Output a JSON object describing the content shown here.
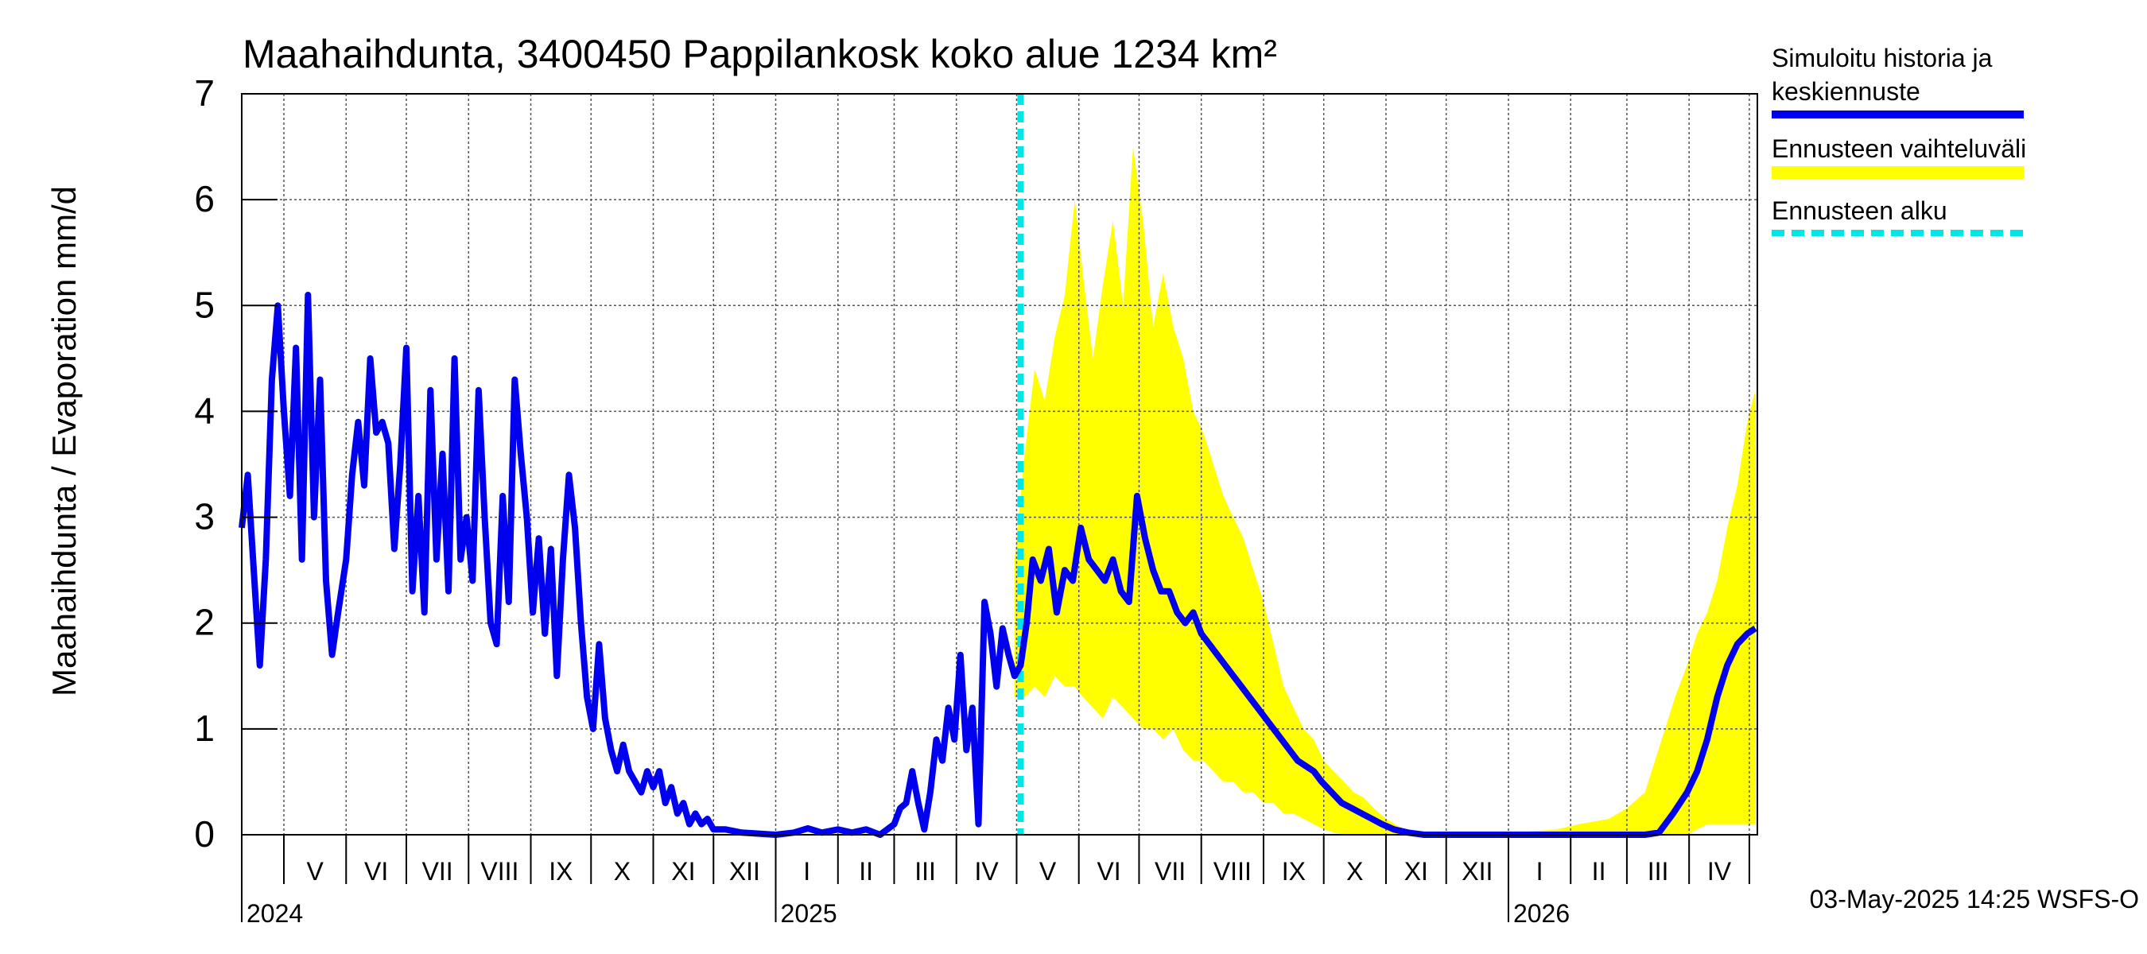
{
  "chart_data": {
    "type": "line",
    "title": "Maahaihdunta, 3400450 Pappilankosk koko alue 1234 km²",
    "ylabel": "Maahaihdunta / Evaporation   mm/d",
    "ylim": [
      0,
      7
    ],
    "yticks": [
      "0",
      "1",
      "2",
      "3",
      "4",
      "5",
      "6",
      "7"
    ],
    "x_range": [
      "2024-04-10",
      "2026-05-05"
    ],
    "months": [
      {
        "label": "V",
        "date": "2024-05-01"
      },
      {
        "label": "VI",
        "date": "2024-06-01"
      },
      {
        "label": "VII",
        "date": "2024-07-01"
      },
      {
        "label": "VIII",
        "date": "2024-08-01"
      },
      {
        "label": "IX",
        "date": "2024-09-01"
      },
      {
        "label": "X",
        "date": "2024-10-01"
      },
      {
        "label": "XI",
        "date": "2024-11-01"
      },
      {
        "label": "XII",
        "date": "2024-12-01"
      },
      {
        "label": "I",
        "date": "2025-01-01"
      },
      {
        "label": "II",
        "date": "2025-02-01"
      },
      {
        "label": "III",
        "date": "2025-03-01"
      },
      {
        "label": "IV",
        "date": "2025-04-01"
      },
      {
        "label": "V",
        "date": "2025-05-01"
      },
      {
        "label": "VI",
        "date": "2025-06-01"
      },
      {
        "label": "VII",
        "date": "2025-07-01"
      },
      {
        "label": "VIII",
        "date": "2025-08-01"
      },
      {
        "label": "IX",
        "date": "2025-09-01"
      },
      {
        "label": "X",
        "date": "2025-10-01"
      },
      {
        "label": "XI",
        "date": "2025-11-01"
      },
      {
        "label": "XII",
        "date": "2025-12-01"
      },
      {
        "label": "I",
        "date": "2026-01-01"
      },
      {
        "label": "II",
        "date": "2026-02-01"
      },
      {
        "label": "III",
        "date": "2026-03-01"
      },
      {
        "label": "IV",
        "date": "2026-04-01"
      },
      {
        "label": "",
        "date": "2026-05-01"
      }
    ],
    "years": [
      {
        "label": "2024",
        "date": "2024-04-10"
      },
      {
        "label": "2025",
        "date": "2025-01-01"
      },
      {
        "label": "2026",
        "date": "2026-01-01"
      }
    ],
    "forecast_start": "2025-05-03",
    "series": [
      {
        "name": "Simuloitu historia ja keskiennuste",
        "color": "#0000ee",
        "points": [
          [
            "2024-04-10",
            2.9
          ],
          [
            "2024-04-13",
            3.4
          ],
          [
            "2024-04-16",
            2.5
          ],
          [
            "2024-04-19",
            1.6
          ],
          [
            "2024-04-22",
            2.6
          ],
          [
            "2024-04-25",
            4.3
          ],
          [
            "2024-04-28",
            5.0
          ],
          [
            "2024-05-01",
            4.0
          ],
          [
            "2024-05-04",
            3.2
          ],
          [
            "2024-05-07",
            4.6
          ],
          [
            "2024-05-10",
            2.6
          ],
          [
            "2024-05-13",
            5.1
          ],
          [
            "2024-05-16",
            3.0
          ],
          [
            "2024-05-19",
            4.3
          ],
          [
            "2024-05-22",
            2.4
          ],
          [
            "2024-05-25",
            1.7
          ],
          [
            "2024-05-28",
            2.1
          ],
          [
            "2024-06-01",
            2.6
          ],
          [
            "2024-06-04",
            3.4
          ],
          [
            "2024-06-07",
            3.9
          ],
          [
            "2024-06-10",
            3.3
          ],
          [
            "2024-06-13",
            4.5
          ],
          [
            "2024-06-16",
            3.8
          ],
          [
            "2024-06-19",
            3.9
          ],
          [
            "2024-06-22",
            3.7
          ],
          [
            "2024-06-25",
            2.7
          ],
          [
            "2024-06-28",
            3.5
          ],
          [
            "2024-07-01",
            4.6
          ],
          [
            "2024-07-04",
            2.3
          ],
          [
            "2024-07-07",
            3.2
          ],
          [
            "2024-07-10",
            2.1
          ],
          [
            "2024-07-13",
            4.2
          ],
          [
            "2024-07-16",
            2.6
          ],
          [
            "2024-07-19",
            3.6
          ],
          [
            "2024-07-22",
            2.3
          ],
          [
            "2024-07-25",
            4.5
          ],
          [
            "2024-07-28",
            2.6
          ],
          [
            "2024-07-31",
            3.0
          ],
          [
            "2024-08-03",
            2.4
          ],
          [
            "2024-08-06",
            4.2
          ],
          [
            "2024-08-09",
            3.0
          ],
          [
            "2024-08-12",
            2.0
          ],
          [
            "2024-08-15",
            1.8
          ],
          [
            "2024-08-18",
            3.2
          ],
          [
            "2024-08-21",
            2.2
          ],
          [
            "2024-08-24",
            4.3
          ],
          [
            "2024-08-27",
            3.6
          ],
          [
            "2024-08-30",
            3.0
          ],
          [
            "2024-09-02",
            2.1
          ],
          [
            "2024-09-05",
            2.8
          ],
          [
            "2024-09-08",
            1.9
          ],
          [
            "2024-09-11",
            2.7
          ],
          [
            "2024-09-14",
            1.5
          ],
          [
            "2024-09-17",
            2.6
          ],
          [
            "2024-09-20",
            3.4
          ],
          [
            "2024-09-23",
            2.9
          ],
          [
            "2024-09-26",
            2.0
          ],
          [
            "2024-09-29",
            1.3
          ],
          [
            "2024-10-02",
            1.0
          ],
          [
            "2024-10-05",
            1.8
          ],
          [
            "2024-10-08",
            1.1
          ],
          [
            "2024-10-11",
            0.8
          ],
          [
            "2024-10-14",
            0.6
          ],
          [
            "2024-10-17",
            0.85
          ],
          [
            "2024-10-20",
            0.6
          ],
          [
            "2024-10-23",
            0.5
          ],
          [
            "2024-10-26",
            0.4
          ],
          [
            "2024-10-29",
            0.6
          ],
          [
            "2024-11-01",
            0.45
          ],
          [
            "2024-11-04",
            0.6
          ],
          [
            "2024-11-07",
            0.3
          ],
          [
            "2024-11-10",
            0.45
          ],
          [
            "2024-11-13",
            0.2
          ],
          [
            "2024-11-16",
            0.3
          ],
          [
            "2024-11-19",
            0.1
          ],
          [
            "2024-11-22",
            0.2
          ],
          [
            "2024-11-25",
            0.1
          ],
          [
            "2024-11-28",
            0.15
          ],
          [
            "2024-12-01",
            0.05
          ],
          [
            "2024-12-07",
            0.05
          ],
          [
            "2024-12-15",
            0.02
          ],
          [
            "2025-01-01",
            0.0
          ],
          [
            "2025-01-10",
            0.02
          ],
          [
            "2025-01-17",
            0.06
          ],
          [
            "2025-01-24",
            0.02
          ],
          [
            "2025-02-01",
            0.05
          ],
          [
            "2025-02-08",
            0.02
          ],
          [
            "2025-02-15",
            0.05
          ],
          [
            "2025-02-22",
            0.0
          ],
          [
            "2025-03-01",
            0.1
          ],
          [
            "2025-03-04",
            0.25
          ],
          [
            "2025-03-07",
            0.3
          ],
          [
            "2025-03-10",
            0.6
          ],
          [
            "2025-03-13",
            0.3
          ],
          [
            "2025-03-16",
            0.05
          ],
          [
            "2025-03-19",
            0.4
          ],
          [
            "2025-03-22",
            0.9
          ],
          [
            "2025-03-25",
            0.7
          ],
          [
            "2025-03-28",
            1.2
          ],
          [
            "2025-03-31",
            0.9
          ],
          [
            "2025-04-03",
            1.7
          ],
          [
            "2025-04-06",
            0.8
          ],
          [
            "2025-04-09",
            1.2
          ],
          [
            "2025-04-12",
            0.1
          ],
          [
            "2025-04-15",
            2.2
          ],
          [
            "2025-04-18",
            1.9
          ],
          [
            "2025-04-21",
            1.4
          ],
          [
            "2025-04-24",
            1.95
          ],
          [
            "2025-04-27",
            1.7
          ],
          [
            "2025-04-30",
            1.5
          ],
          [
            "2025-05-03",
            1.6
          ],
          [
            "2025-05-06",
            2.0
          ],
          [
            "2025-05-09",
            2.6
          ],
          [
            "2025-05-13",
            2.4
          ],
          [
            "2025-05-17",
            2.7
          ],
          [
            "2025-05-21",
            2.1
          ],
          [
            "2025-05-25",
            2.5
          ],
          [
            "2025-05-29",
            2.4
          ],
          [
            "2025-06-02",
            2.9
          ],
          [
            "2025-06-06",
            2.6
          ],
          [
            "2025-06-10",
            2.5
          ],
          [
            "2025-06-14",
            2.4
          ],
          [
            "2025-06-18",
            2.6
          ],
          [
            "2025-06-22",
            2.3
          ],
          [
            "2025-06-26",
            2.2
          ],
          [
            "2025-06-30",
            3.2
          ],
          [
            "2025-07-04",
            2.8
          ],
          [
            "2025-07-08",
            2.5
          ],
          [
            "2025-07-12",
            2.3
          ],
          [
            "2025-07-16",
            2.3
          ],
          [
            "2025-07-20",
            2.1
          ],
          [
            "2025-07-24",
            2.0
          ],
          [
            "2025-07-28",
            2.1
          ],
          [
            "2025-08-01",
            1.9
          ],
          [
            "2025-08-05",
            1.8
          ],
          [
            "2025-08-09",
            1.7
          ],
          [
            "2025-08-13",
            1.6
          ],
          [
            "2025-08-17",
            1.5
          ],
          [
            "2025-08-21",
            1.4
          ],
          [
            "2025-08-25",
            1.3
          ],
          [
            "2025-08-29",
            1.2
          ],
          [
            "2025-09-02",
            1.1
          ],
          [
            "2025-09-06",
            1.0
          ],
          [
            "2025-09-10",
            0.9
          ],
          [
            "2025-09-14",
            0.8
          ],
          [
            "2025-09-18",
            0.7
          ],
          [
            "2025-09-22",
            0.65
          ],
          [
            "2025-09-26",
            0.6
          ],
          [
            "2025-09-30",
            0.5
          ],
          [
            "2025-10-05",
            0.4
          ],
          [
            "2025-10-10",
            0.3
          ],
          [
            "2025-10-15",
            0.25
          ],
          [
            "2025-10-20",
            0.2
          ],
          [
            "2025-10-25",
            0.15
          ],
          [
            "2025-10-30",
            0.1
          ],
          [
            "2025-11-05",
            0.05
          ],
          [
            "2025-11-12",
            0.02
          ],
          [
            "2025-11-20",
            0.0
          ],
          [
            "2026-01-01",
            0.0
          ],
          [
            "2026-03-10",
            0.0
          ],
          [
            "2026-03-17",
            0.02
          ],
          [
            "2026-03-24",
            0.2
          ],
          [
            "2026-03-31",
            0.4
          ],
          [
            "2026-04-05",
            0.6
          ],
          [
            "2026-04-10",
            0.9
          ],
          [
            "2026-04-15",
            1.3
          ],
          [
            "2026-04-20",
            1.6
          ],
          [
            "2026-04-25",
            1.8
          ],
          [
            "2026-04-30",
            1.9
          ],
          [
            "2026-05-04",
            1.95
          ]
        ]
      },
      {
        "name": "Ennusteen vaihteluväli",
        "color": "#ffff00",
        "band": [
          [
            "2025-04-30",
            1.3,
            2.6
          ],
          [
            "2025-05-05",
            1.3,
            3.6
          ],
          [
            "2025-05-10",
            1.4,
            4.4
          ],
          [
            "2025-05-15",
            1.3,
            4.1
          ],
          [
            "2025-05-20",
            1.5,
            4.7
          ],
          [
            "2025-05-25",
            1.4,
            5.1
          ],
          [
            "2025-05-30",
            1.4,
            6.0
          ],
          [
            "2025-06-03",
            1.3,
            5.3
          ],
          [
            "2025-06-08",
            1.2,
            4.5
          ],
          [
            "2025-06-13",
            1.1,
            5.2
          ],
          [
            "2025-06-18",
            1.3,
            5.8
          ],
          [
            "2025-06-23",
            1.2,
            5.0
          ],
          [
            "2025-06-28",
            1.1,
            6.5
          ],
          [
            "2025-07-03",
            1.0,
            5.8
          ],
          [
            "2025-07-08",
            1.0,
            4.8
          ],
          [
            "2025-07-13",
            0.9,
            5.3
          ],
          [
            "2025-07-18",
            1.0,
            4.8
          ],
          [
            "2025-07-23",
            0.8,
            4.5
          ],
          [
            "2025-07-28",
            0.7,
            4.0
          ],
          [
            "2025-08-02",
            0.7,
            3.8
          ],
          [
            "2025-08-07",
            0.6,
            3.5
          ],
          [
            "2025-08-12",
            0.5,
            3.2
          ],
          [
            "2025-08-17",
            0.5,
            3.0
          ],
          [
            "2025-08-22",
            0.4,
            2.8
          ],
          [
            "2025-08-27",
            0.4,
            2.5
          ],
          [
            "2025-09-01",
            0.3,
            2.2
          ],
          [
            "2025-09-06",
            0.3,
            1.8
          ],
          [
            "2025-09-11",
            0.2,
            1.4
          ],
          [
            "2025-09-16",
            0.2,
            1.2
          ],
          [
            "2025-09-21",
            0.15,
            1.0
          ],
          [
            "2025-09-26",
            0.1,
            0.9
          ],
          [
            "2025-10-01",
            0.05,
            0.7
          ],
          [
            "2025-10-06",
            0.02,
            0.6
          ],
          [
            "2025-10-11",
            0.0,
            0.5
          ],
          [
            "2025-10-16",
            0.0,
            0.4
          ],
          [
            "2025-10-21",
            0.0,
            0.35
          ],
          [
            "2025-10-26",
            0.0,
            0.25
          ],
          [
            "2025-11-01",
            0.0,
            0.15
          ],
          [
            "2025-11-10",
            0.0,
            0.05
          ],
          [
            "2025-11-20",
            0.0,
            0.0
          ],
          [
            "2025-12-31",
            0.0,
            0.0
          ],
          [
            "2026-01-10",
            0.0,
            0.03
          ],
          [
            "2026-01-25",
            0.0,
            0.05
          ],
          [
            "2026-02-05",
            0.0,
            0.1
          ],
          [
            "2026-02-20",
            0.0,
            0.15
          ],
          [
            "2026-03-01",
            0.0,
            0.25
          ],
          [
            "2026-03-10",
            0.0,
            0.4
          ],
          [
            "2026-03-15",
            0.0,
            0.7
          ],
          [
            "2026-03-20",
            0.0,
            1.0
          ],
          [
            "2026-03-25",
            0.0,
            1.3
          ],
          [
            "2026-03-31",
            0.0,
            1.6
          ],
          [
            "2026-04-05",
            0.05,
            1.9
          ],
          [
            "2026-04-10",
            0.1,
            2.1
          ],
          [
            "2026-04-15",
            0.1,
            2.4
          ],
          [
            "2026-04-20",
            0.1,
            2.9
          ],
          [
            "2026-04-25",
            0.1,
            3.3
          ],
          [
            "2026-04-30",
            0.1,
            3.9
          ],
          [
            "2026-05-04",
            0.1,
            4.2
          ]
        ]
      },
      {
        "name": "Ennusteen alku",
        "color": "#00e5e5"
      }
    ],
    "legend": [
      {
        "label": "Simuloitu historia ja",
        "label2": "keskiennuste",
        "color": "#0000ee",
        "style": "solid"
      },
      {
        "label": "Ennusteen vaihteluväli",
        "color": "#ffff00",
        "style": "solid"
      },
      {
        "label": "Ennusteen alku",
        "color": "#00e5e5",
        "style": "dashed"
      }
    ],
    "footer": "03-May-2025 14:25 WSFS-O",
    "grid": true
  }
}
